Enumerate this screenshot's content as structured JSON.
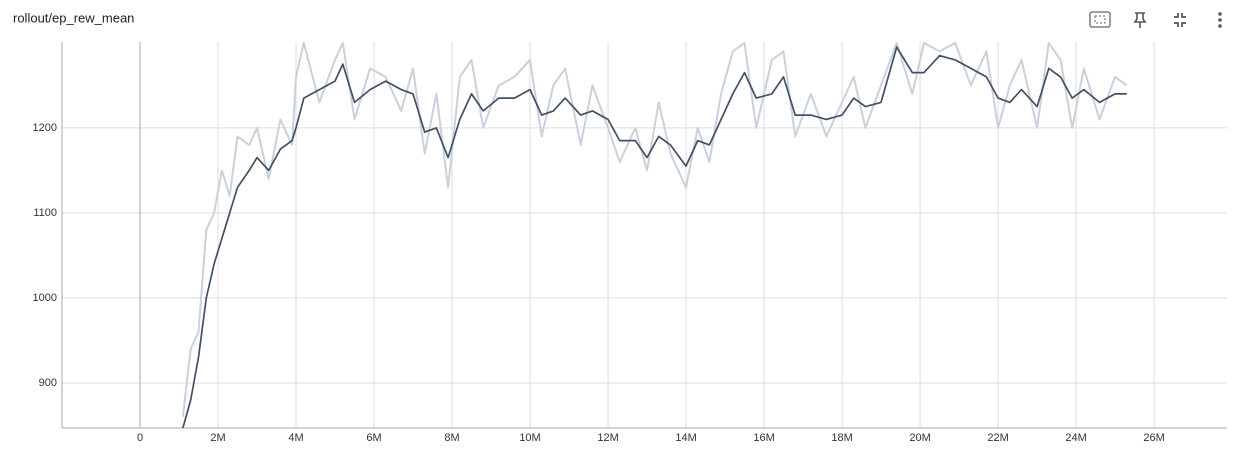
{
  "chart_data": {
    "type": "line",
    "title": "rollout/ep_rew_mean",
    "x": [
      1.1,
      1.3,
      1.5,
      1.7,
      1.9,
      2.1,
      2.3,
      2.5,
      2.8,
      3.0,
      3.3,
      3.6,
      3.9,
      4.0,
      4.2,
      4.6,
      5.0,
      5.2,
      5.5,
      5.9,
      6.3,
      6.7,
      7.0,
      7.3,
      7.6,
      7.9,
      8.2,
      8.5,
      8.8,
      9.2,
      9.6,
      10.0,
      10.3,
      10.6,
      10.9,
      11.3,
      11.6,
      12.0,
      12.3,
      12.7,
      13.0,
      13.3,
      13.6,
      14.0,
      14.3,
      14.6,
      14.9,
      15.2,
      15.5,
      15.8,
      16.2,
      16.5,
      16.8,
      17.2,
      17.6,
      18.0,
      18.3,
      18.6,
      19.0,
      19.4,
      19.8,
      20.1,
      20.5,
      20.9,
      21.3,
      21.7,
      22.0,
      22.3,
      22.6,
      23.0,
      23.3,
      23.6,
      23.9,
      24.2,
      24.6,
      25.0,
      25.3
    ],
    "series": [
      {
        "color": "#c9d1dc",
        "values": [
          860,
          940,
          960,
          1080,
          1100,
          1150,
          1120,
          1190,
          1180,
          1200,
          1140,
          1210,
          1180,
          1260,
          1300,
          1230,
          1280,
          1300,
          1210,
          1270,
          1260,
          1220,
          1270,
          1170,
          1240,
          1130,
          1260,
          1280,
          1200,
          1250,
          1260,
          1280,
          1190,
          1250,
          1270,
          1180,
          1250,
          1200,
          1160,
          1200,
          1150,
          1230,
          1170,
          1130,
          1200,
          1160,
          1240,
          1290,
          1300,
          1200,
          1280,
          1290,
          1190,
          1240,
          1190,
          1230,
          1260,
          1200,
          1250,
          1300,
          1240,
          1300,
          1290,
          1300,
          1250,
          1290,
          1200,
          1250,
          1280,
          1200,
          1300,
          1280,
          1200,
          1270,
          1210,
          1260,
          1250
        ]
      },
      {
        "color": "#425066",
        "values": [
          847,
          880,
          930,
          1000,
          1040,
          1070,
          1100,
          1130,
          1150,
          1165,
          1150,
          1175,
          1185,
          1200,
          1235,
          1245,
          1255,
          1275,
          1230,
          1245,
          1255,
          1245,
          1240,
          1195,
          1200,
          1165,
          1210,
          1240,
          1220,
          1235,
          1235,
          1245,
          1215,
          1220,
          1235,
          1215,
          1220,
          1210,
          1185,
          1185,
          1165,
          1190,
          1180,
          1155,
          1185,
          1180,
          1210,
          1240,
          1265,
          1235,
          1240,
          1260,
          1215,
          1215,
          1210,
          1215,
          1235,
          1225,
          1230,
          1295,
          1265,
          1265,
          1285,
          1280,
          1270,
          1260,
          1235,
          1230,
          1245,
          1225,
          1270,
          1260,
          1235,
          1245,
          1230,
          1240,
          1240
        ]
      }
    ],
    "xlim": [
      -2,
      27.87
    ],
    "ylim": [
      847,
      1301
    ],
    "xticks": [
      0,
      {
        "value": 2,
        "label": "2M"
      },
      {
        "value": 4,
        "label": "4M"
      },
      {
        "value": 6,
        "label": "6M"
      },
      {
        "value": 8,
        "label": "8M"
      },
      {
        "value": 10,
        "label": "10M"
      },
      {
        "value": 12,
        "label": "12M"
      },
      {
        "value": 14,
        "label": "14M"
      },
      {
        "value": 16,
        "label": "16M"
      },
      {
        "value": 18,
        "label": "18M"
      },
      {
        "value": 20,
        "label": "20M"
      },
      {
        "value": 22,
        "label": "22M"
      },
      {
        "value": 24,
        "label": "24M"
      },
      {
        "value": 26,
        "label": "26M"
      }
    ],
    "yticks": [
      900,
      1000,
      1100,
      1200
    ],
    "grid": true
  }
}
